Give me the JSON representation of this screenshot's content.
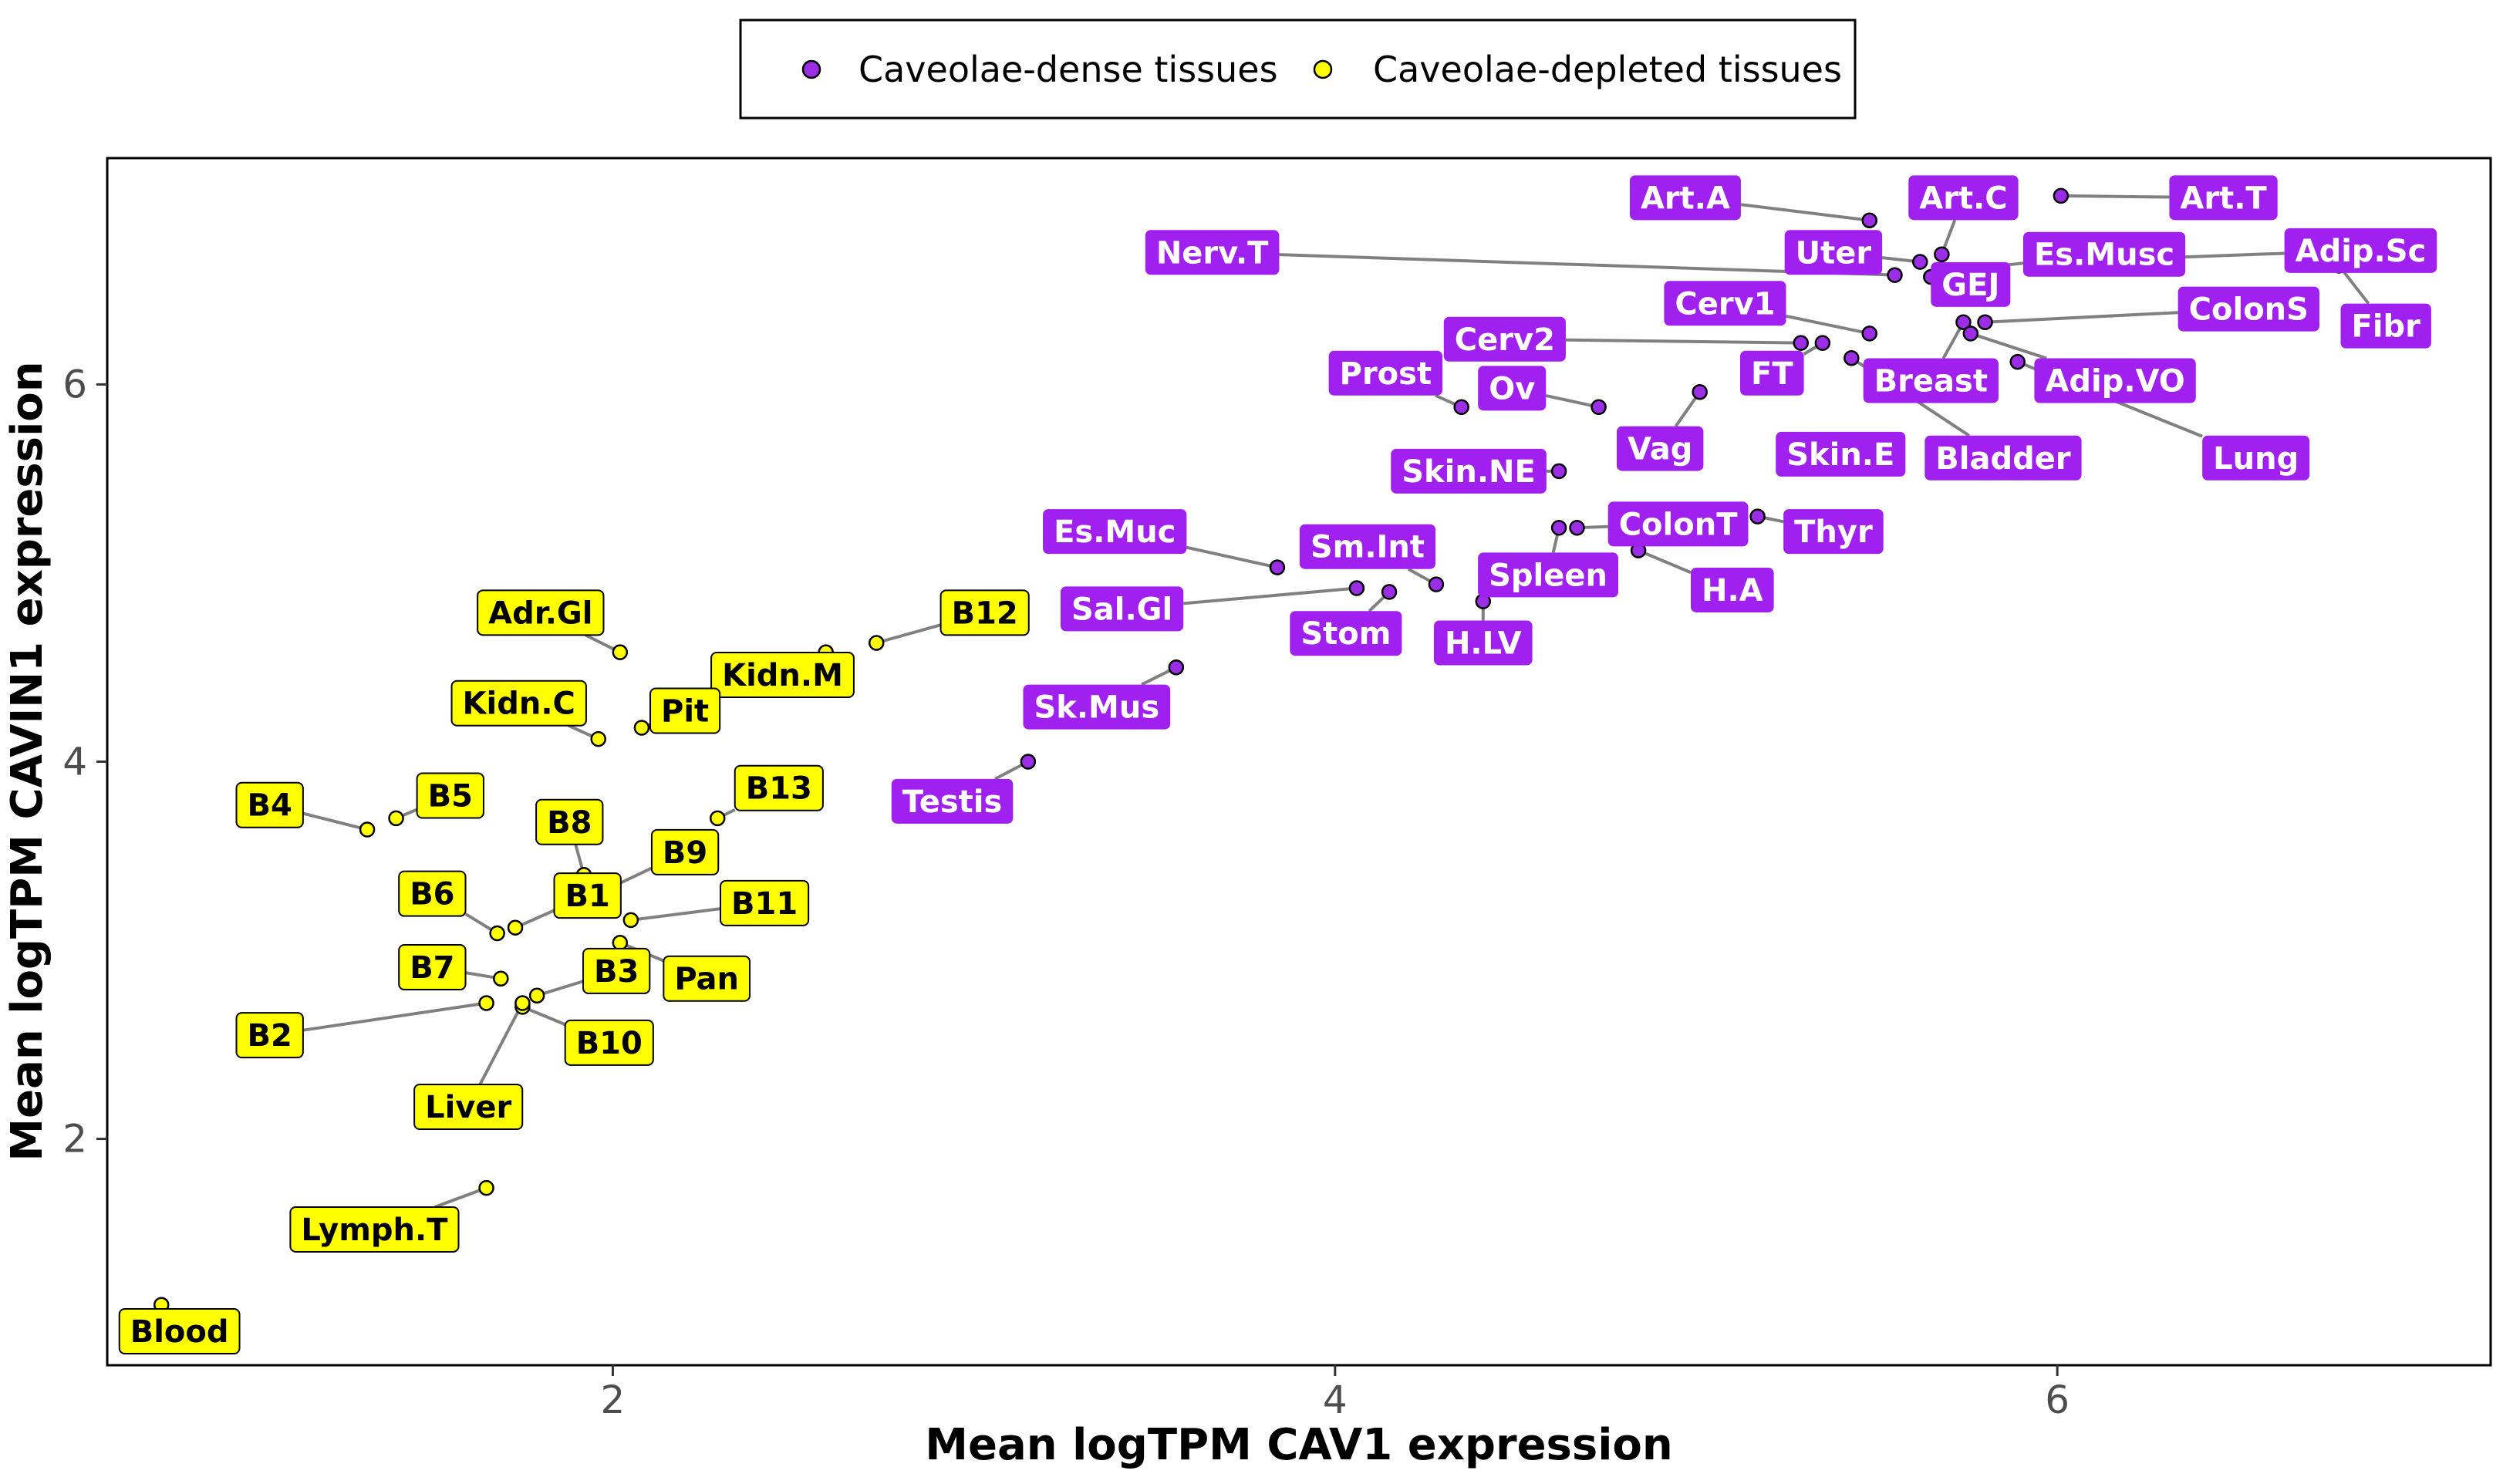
{
  "chart_data": {
    "type": "scatter",
    "xlabel": "Mean logTPM CAV1 expression",
    "ylabel": "Mean logTPM CAVIN1 expression",
    "xlim": [
      0.6,
      7.2
    ],
    "ylim": [
      0.8,
      7.2
    ],
    "xticks": [
      2,
      4,
      6
    ],
    "yticks": [
      2,
      4,
      6
    ],
    "grid": false,
    "legend_position": "top",
    "colors": {
      "dense_fill": "#9b2de6",
      "dense_label": "#a020f0",
      "depleted_fill": "#ffff00",
      "depleted_label": "#ffff00",
      "leader": "#808080",
      "frame": "#000000"
    },
    "series": [
      {
        "name": "Caveolae-dense tissues",
        "points": [
          {
            "label": "Art.A",
            "x": 5.48,
            "y": 6.87,
            "lx": 4.97,
            "ly": 6.99
          },
          {
            "label": "Art.C",
            "x": 5.68,
            "y": 6.69,
            "lx": 5.74,
            "ly": 6.99
          },
          {
            "label": "Art.T",
            "x": 6.01,
            "y": 7.0,
            "lx": 6.46,
            "ly": 6.99
          },
          {
            "label": "Es.Musc",
            "x": 5.7,
            "y": 6.6,
            "lx": 6.13,
            "ly": 6.69
          },
          {
            "label": "Adip.Sc",
            "x": 6.27,
            "y": 6.67,
            "lx": 6.84,
            "ly": 6.71
          },
          {
            "label": "Nerv.T",
            "x": 5.55,
            "y": 6.58,
            "lx": 3.66,
            "ly": 6.7
          },
          {
            "label": "Uter",
            "x": 5.62,
            "y": 6.65,
            "lx": 5.38,
            "ly": 6.7
          },
          {
            "label": "GEJ",
            "x": 5.65,
            "y": 6.57,
            "lx": 5.76,
            "ly": 6.53
          },
          {
            "label": "Fibr",
            "x": 6.78,
            "y": 6.63,
            "lx": 6.91,
            "ly": 6.31
          },
          {
            "label": "Cerv1",
            "x": 5.48,
            "y": 6.27,
            "lx": 5.08,
            "ly": 6.43
          },
          {
            "label": "ColonS",
            "x": 5.8,
            "y": 6.33,
            "lx": 6.53,
            "ly": 6.4
          },
          {
            "label": "Cerv2",
            "x": 5.29,
            "y": 6.22,
            "lx": 4.47,
            "ly": 6.24
          },
          {
            "label": "FT",
            "x": 5.35,
            "y": 6.22,
            "lx": 5.21,
            "ly": 6.06
          },
          {
            "label": "Prost",
            "x": 4.35,
            "y": 5.88,
            "lx": 4.14,
            "ly": 6.06
          },
          {
            "label": "Ov",
            "x": 4.73,
            "y": 5.88,
            "lx": 4.49,
            "ly": 5.98
          },
          {
            "label": "Breast",
            "x": 5.74,
            "y": 6.33,
            "lx": 5.65,
            "ly": 6.02
          },
          {
            "label": "Adip.VO",
            "x": 5.76,
            "y": 6.27,
            "lx": 6.16,
            "ly": 6.02
          },
          {
            "label": "Vag",
            "x": 5.01,
            "y": 5.96,
            "lx": 4.9,
            "ly": 5.66
          },
          {
            "label": "Bladder",
            "x": 5.43,
            "y": 6.14,
            "lx": 5.85,
            "ly": 5.61
          },
          {
            "label": "Skin.E",
            "x": 5.49,
            "y": 5.6,
            "lx": 5.4,
            "ly": 5.63
          },
          {
            "label": "Skin.NE",
            "x": 4.62,
            "y": 5.54,
            "lx": 4.37,
            "ly": 5.54
          },
          {
            "label": "Lung",
            "x": 5.89,
            "y": 6.12,
            "lx": 6.55,
            "ly": 5.61
          },
          {
            "label": "ColonT",
            "x": 4.67,
            "y": 5.24,
            "lx": 4.95,
            "ly": 5.26
          },
          {
            "label": "Thyr",
            "x": 5.17,
            "y": 5.3,
            "lx": 5.38,
            "ly": 5.22
          },
          {
            "label": "Es.Muc",
            "x": 3.84,
            "y": 5.03,
            "lx": 3.39,
            "ly": 5.22
          },
          {
            "label": "Sm.Int",
            "x": 4.28,
            "y": 4.94,
            "lx": 4.09,
            "ly": 5.14
          },
          {
            "label": "Spleen",
            "x": 4.62,
            "y": 5.24,
            "lx": 4.59,
            "ly": 4.99
          },
          {
            "label": "H.A",
            "x": 4.84,
            "y": 5.12,
            "lx": 5.1,
            "ly": 4.91
          },
          {
            "label": "Sal.Gl",
            "x": 4.06,
            "y": 4.92,
            "lx": 3.41,
            "ly": 4.81
          },
          {
            "label": "Stom",
            "x": 4.15,
            "y": 4.9,
            "lx": 4.03,
            "ly": 4.68
          },
          {
            "label": "H.LV",
            "x": 4.41,
            "y": 4.85,
            "lx": 4.41,
            "ly": 4.63
          },
          {
            "label": "Sk.Mus",
            "x": 3.56,
            "y": 4.5,
            "lx": 3.34,
            "ly": 4.29
          },
          {
            "label": "Testis",
            "x": 3.15,
            "y": 4.0,
            "lx": 2.94,
            "ly": 3.79
          }
        ]
      },
      {
        "name": "Caveolae-depleted tissues",
        "points": [
          {
            "label": "B12",
            "x": 2.73,
            "y": 4.63,
            "lx": 3.03,
            "ly": 4.79
          },
          {
            "label": "Adr.Gl",
            "x": 2.02,
            "y": 4.58,
            "lx": 1.8,
            "ly": 4.79
          },
          {
            "label": "Kidn.M",
            "x": 2.59,
            "y": 4.58,
            "lx": 2.47,
            "ly": 4.46
          },
          {
            "label": "Kidn.C",
            "x": 1.96,
            "y": 4.12,
            "lx": 1.74,
            "ly": 4.31
          },
          {
            "label": "Pit",
            "x": 2.08,
            "y": 4.18,
            "lx": 2.2,
            "ly": 4.27
          },
          {
            "label": "B13",
            "x": 2.29,
            "y": 3.7,
            "lx": 2.46,
            "ly": 3.86
          },
          {
            "label": "B5",
            "x": 1.4,
            "y": 3.7,
            "lx": 1.55,
            "ly": 3.82
          },
          {
            "label": "B4",
            "x": 1.32,
            "y": 3.64,
            "lx": 1.05,
            "ly": 3.77
          },
          {
            "label": "B8",
            "x": 1.92,
            "y": 3.4,
            "lx": 1.88,
            "ly": 3.68
          },
          {
            "label": "B9",
            "x": 1.97,
            "y": 3.31,
            "lx": 2.2,
            "ly": 3.52
          },
          {
            "label": "B6",
            "x": 1.68,
            "y": 3.09,
            "lx": 1.5,
            "ly": 3.3
          },
          {
            "label": "B1",
            "x": 1.73,
            "y": 3.12,
            "lx": 1.93,
            "ly": 3.29
          },
          {
            "label": "B11",
            "x": 2.05,
            "y": 3.16,
            "lx": 2.42,
            "ly": 3.25
          },
          {
            "label": "B7",
            "x": 1.69,
            "y": 2.85,
            "lx": 1.5,
            "ly": 2.91
          },
          {
            "label": "B3",
            "x": 1.79,
            "y": 2.76,
            "lx": 2.01,
            "ly": 2.89
          },
          {
            "label": "Pan",
            "x": 2.02,
            "y": 3.04,
            "lx": 2.26,
            "ly": 2.85
          },
          {
            "label": "B2",
            "x": 1.65,
            "y": 2.72,
            "lx": 1.05,
            "ly": 2.55
          },
          {
            "label": "B10",
            "x": 1.75,
            "y": 2.7,
            "lx": 1.99,
            "ly": 2.51
          },
          {
            "label": "Liver",
            "x": 1.75,
            "y": 2.72,
            "lx": 1.6,
            "ly": 2.17
          },
          {
            "label": "Lymph.T",
            "x": 1.65,
            "y": 1.74,
            "lx": 1.34,
            "ly": 1.52
          },
          {
            "label": "Blood",
            "x": 0.75,
            "y": 1.12,
            "lx": 0.8,
            "ly": 0.98
          }
        ]
      }
    ]
  }
}
